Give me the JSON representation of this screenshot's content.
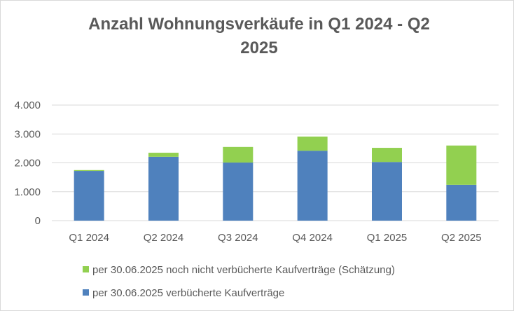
{
  "chart_data": {
    "type": "bar",
    "stacked": true,
    "title": "Anzahl Wohnungsverkäufe in Q1 2024 - Q2 2025",
    "title_lines": [
      "Anzahl Wohnungsverkäufe in Q1 2024 - Q2",
      "2025"
    ],
    "categories": [
      "Q1 2024",
      "Q2 2024",
      "Q3 2024",
      "Q4 2024",
      "Q1 2025",
      "Q2 2025"
    ],
    "series": [
      {
        "name": "per 30.06.2025 verbücherte Kaufverträge",
        "color": "#4f81bd",
        "values": [
          1720,
          2210,
          2010,
          2420,
          2030,
          1240
        ]
      },
      {
        "name": "per 30.06.2025 noch nicht verbücherte Kaufverträge (Schätzung)",
        "color": "#92d050",
        "values": [
          30,
          140,
          540,
          490,
          490,
          1360
        ]
      }
    ],
    "ylim": [
      0,
      4000
    ],
    "yticks": [
      0,
      1000,
      2000,
      3000,
      4000
    ],
    "ytick_labels": [
      "0",
      "1.000",
      "2.000",
      "3.000",
      "4.000"
    ],
    "grid": true,
    "legend_position": "bottom",
    "legend_order": [
      1,
      0
    ],
    "xlabel": "",
    "ylabel": ""
  }
}
